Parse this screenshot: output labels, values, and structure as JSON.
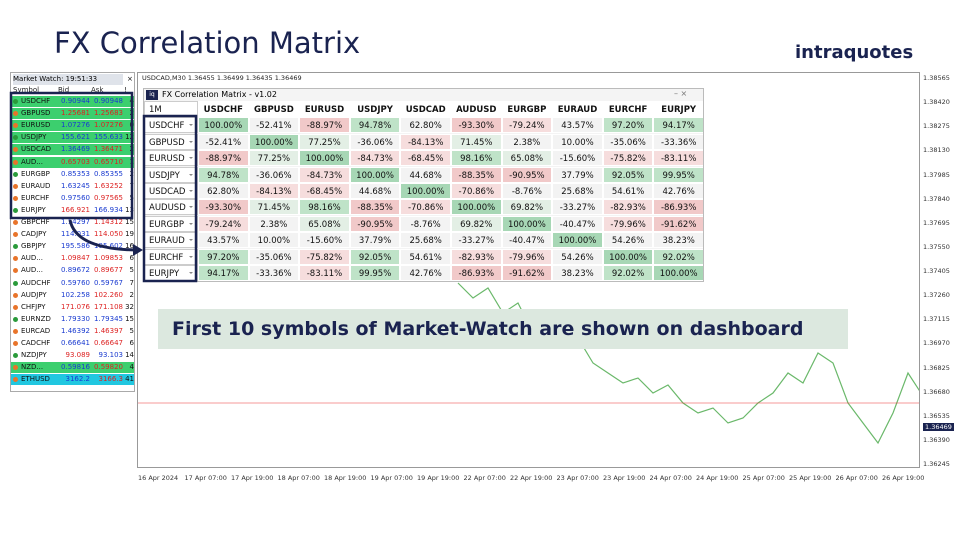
{
  "header": {
    "title": "FX Correlation Matrix",
    "brand": "intraquotes"
  },
  "market_watch": {
    "title": "Market Watch: 19:51:33",
    "columns": [
      "Symbol",
      "Bid",
      "Ask",
      "!"
    ],
    "rows": [
      [
        "USDCHF",
        "0.90944",
        "0.90948",
        "4"
      ],
      [
        "GBPUSD",
        "1.25681",
        "1.25683",
        "2"
      ],
      [
        "EURUSD",
        "1.07276",
        "1.07276",
        "0"
      ],
      [
        "USDJPY",
        "155.621",
        "155.633",
        "12"
      ],
      [
        "USDCAD",
        "1.36469",
        "1.36471",
        "2"
      ],
      [
        "AUD...",
        "0.65703",
        "0.65710",
        "1"
      ],
      [
        "EURGBP",
        "0.85353",
        "0.85355",
        "2"
      ],
      [
        "EURAUD",
        "1.63245",
        "1.63252",
        "7"
      ],
      [
        "EURCHF",
        "0.97560",
        "0.97565",
        "5"
      ],
      [
        "EURJPY",
        "166.921",
        "166.934",
        "13"
      ],
      [
        "GBPCHF",
        "1.14297",
        "1.14312",
        "15"
      ],
      [
        "CADJPY",
        "114.031",
        "114.050",
        "19"
      ],
      [
        "GBPJPY",
        "195.586",
        "195.602",
        "16"
      ],
      [
        "AUD...",
        "1.09847",
        "1.09853",
        "6"
      ],
      [
        "AUD...",
        "0.89672",
        "0.89677",
        "5"
      ],
      [
        "AUDCHF",
        "0.59760",
        "0.59767",
        "7"
      ],
      [
        "AUDJPY",
        "102.258",
        "102.260",
        "2"
      ],
      [
        "CHFJPY",
        "171.076",
        "171.108",
        "32"
      ],
      [
        "EURNZD",
        "1.79330",
        "1.79345",
        "15"
      ],
      [
        "EURCAD",
        "1.46392",
        "1.46397",
        "5"
      ],
      [
        "CADCHF",
        "0.66641",
        "0.66647",
        "6"
      ],
      [
        "NZDJPY",
        "93.089",
        "93.103",
        "14"
      ],
      [
        "NZD...",
        "0.59816",
        "0.59820",
        "4"
      ],
      [
        "ETHUSD",
        "3162.2",
        "3166.3",
        "41"
      ]
    ]
  },
  "chart": {
    "info": "USDCAD,M30  1.36455 1.36499 1.36435 1.36469",
    "price_labels": [
      "1.38565",
      "1.38420",
      "1.38275",
      "1.38130",
      "1.37985",
      "1.37840",
      "1.37695",
      "1.37550",
      "1.37405",
      "1.37260",
      "1.37115",
      "1.36970",
      "1.36825",
      "1.36680",
      "1.36535",
      "1.36469",
      "1.36390",
      "1.36245"
    ],
    "time_labels": [
      "16 Apr 2024",
      "17 Apr 07:00",
      "17 Apr 19:00",
      "18 Apr 07:00",
      "18 Apr 19:00",
      "19 Apr 07:00",
      "19 Apr 19:00",
      "22 Apr 07:00",
      "22 Apr 19:00",
      "23 Apr 07:00",
      "23 Apr 19:00",
      "24 Apr 07:00",
      "24 Apr 19:00",
      "25 Apr 07:00",
      "25 Apr 19:00",
      "26 Apr 07:00",
      "26 Apr 19:00"
    ]
  },
  "matrix": {
    "title": "FX Correlation Matrix - v1.02",
    "timeframe": "1M",
    "columns": [
      "USDCHF",
      "GBPUSD",
      "EURUSD",
      "USDJPY",
      "USDCAD",
      "AUDUSD",
      "EURGBP",
      "EURAUD",
      "EURCHF",
      "EURJPY"
    ],
    "rows": [
      {
        "symbol": "USDCHF",
        "cells": [
          "100.00%",
          "-52.41%",
          "-88.97%",
          "94.78%",
          "62.80%",
          "-93.30%",
          "-79.24%",
          "43.57%",
          "97.20%",
          "94.17%"
        ]
      },
      {
        "symbol": "GBPUSD",
        "cells": [
          "-52.41%",
          "100.00%",
          "77.25%",
          "-36.06%",
          "-84.13%",
          "71.45%",
          "2.38%",
          "10.00%",
          "-35.06%",
          "-33.36%"
        ]
      },
      {
        "symbol": "EURUSD",
        "cells": [
          "-88.97%",
          "77.25%",
          "100.00%",
          "-84.73%",
          "-68.45%",
          "98.16%",
          "65.08%",
          "-15.60%",
          "-75.82%",
          "-83.11%"
        ]
      },
      {
        "symbol": "USDJPY",
        "cells": [
          "94.78%",
          "-36.06%",
          "-84.73%",
          "100.00%",
          "44.68%",
          "-88.35%",
          "-90.95%",
          "37.79%",
          "92.05%",
          "99.95%"
        ]
      },
      {
        "symbol": "USDCAD",
        "cells": [
          "62.80%",
          "-84.13%",
          "-68.45%",
          "44.68%",
          "100.00%",
          "-70.86%",
          "-8.76%",
          "25.68%",
          "54.61%",
          "42.76%"
        ]
      },
      {
        "symbol": "AUDUSD",
        "cells": [
          "-93.30%",
          "71.45%",
          "98.16%",
          "-88.35%",
          "-70.86%",
          "100.00%",
          "69.82%",
          "-33.27%",
          "-82.93%",
          "-86.93%"
        ]
      },
      {
        "symbol": "EURGBP",
        "cells": [
          "-79.24%",
          "2.38%",
          "65.08%",
          "-90.95%",
          "-8.76%",
          "69.82%",
          "100.00%",
          "-40.47%",
          "-79.96%",
          "-91.62%"
        ]
      },
      {
        "symbol": "EURAUD",
        "cells": [
          "43.57%",
          "10.00%",
          "-15.60%",
          "37.79%",
          "25.68%",
          "-33.27%",
          "-40.47%",
          "100.00%",
          "54.26%",
          "38.23%"
        ]
      },
      {
        "symbol": "EURCHF",
        "cells": [
          "97.20%",
          "-35.06%",
          "-75.82%",
          "92.05%",
          "54.61%",
          "-82.93%",
          "-79.96%",
          "54.26%",
          "100.00%",
          "92.02%"
        ]
      },
      {
        "symbol": "EURJPY",
        "cells": [
          "94.17%",
          "-33.36%",
          "-83.11%",
          "99.95%",
          "42.76%",
          "-86.93%",
          "-91.62%",
          "38.23%",
          "92.02%",
          "100.00%"
        ]
      }
    ]
  },
  "banner": "First 10 symbols of Market-Watch are shown on dashboard"
}
